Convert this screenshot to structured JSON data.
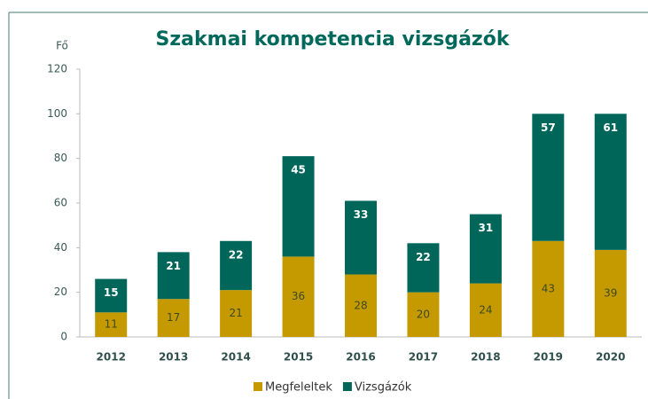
{
  "chart_data": {
    "type": "stacked_bar",
    "title": "Szakmai kompetencia vizsgázók",
    "y_label": "Fő",
    "categories": [
      "2012",
      "2013",
      "2014",
      "2015",
      "2016",
      "2017",
      "2018",
      "2019",
      "2020"
    ],
    "series": [
      {
        "name": "Megfeleltek",
        "color": "#c49a00",
        "values": [
          11,
          17,
          21,
          36,
          28,
          20,
          24,
          43,
          39
        ]
      },
      {
        "name": "Vizsgázók",
        "color": "#00665a",
        "values": [
          15,
          21,
          22,
          45,
          33,
          22,
          31,
          57,
          61
        ]
      }
    ],
    "ylim": [
      0,
      120
    ],
    "yticks": [
      0,
      20,
      40,
      60,
      80,
      100,
      120
    ],
    "grid": false,
    "legend": "bottom"
  }
}
